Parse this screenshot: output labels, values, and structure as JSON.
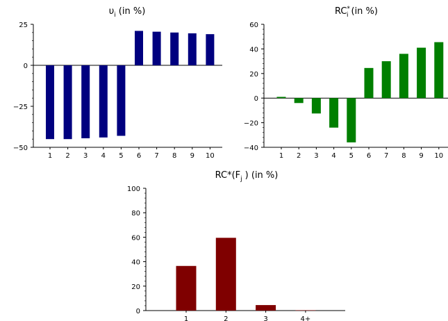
{
  "chart_data": [
    {
      "type": "bar",
      "title_main": "υ",
      "title_sub": "i",
      "title_rest": "(in %)",
      "categories": [
        "1",
        "2",
        "3",
        "4",
        "5",
        "6",
        "7",
        "8",
        "9",
        "10"
      ],
      "values": [
        -45,
        -45,
        -44.5,
        -44,
        -43,
        21,
        20.5,
        20,
        19.5,
        19
      ],
      "ylim": [
        -50,
        25
      ],
      "yticks": [
        -50,
        -25,
        0,
        25
      ],
      "ytick_labels": [
        "−50",
        "−25",
        "0",
        "25"
      ],
      "color": "#00007f"
    },
    {
      "type": "bar",
      "title_main": "RC",
      "title_sup": "*",
      "title_sub": "i",
      "title_rest": "(in %)",
      "categories": [
        "1",
        "2",
        "3",
        "4",
        "5",
        "6",
        "7",
        "8",
        "9",
        "10"
      ],
      "values": [
        1,
        -4,
        -12.5,
        -24,
        -36,
        24.5,
        30,
        36,
        41,
        45.5
      ],
      "ylim": [
        -40,
        60
      ],
      "yticks": [
        -40,
        -20,
        0,
        20,
        40,
        60
      ],
      "ytick_labels": [
        "−40",
        "−20",
        "0",
        "20",
        "40",
        "60"
      ],
      "color": "#007f00"
    },
    {
      "type": "bar",
      "title_main": "RC*(F",
      "title_sub": "j",
      "title_rest": ") (in %)",
      "categories": [
        "1",
        "2",
        "3",
        "4+"
      ],
      "values": [
        36.5,
        59.5,
        4.5,
        0.3
      ],
      "ylim": [
        0,
        100
      ],
      "yticks": [
        0,
        20,
        40,
        60,
        80,
        100
      ],
      "ytick_labels": [
        "0",
        "20",
        "40",
        "60",
        "80",
        "100"
      ],
      "color": "#7f0000"
    }
  ]
}
